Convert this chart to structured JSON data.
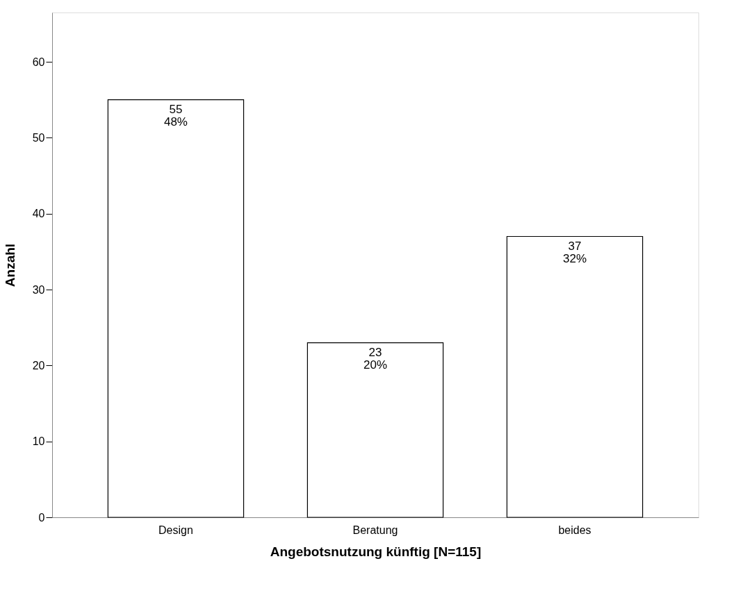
{
  "chart_data": {
    "type": "bar",
    "xlabel": "Angebotsnutzung künftig [N=115]",
    "ylabel": "Anzahl",
    "categories": [
      "Design",
      "Beratung",
      "beides"
    ],
    "values": [
      55,
      23,
      37
    ],
    "value_labels": [
      "55\n48%",
      "23\n20%",
      "37\n32%"
    ],
    "color": "#ffffff",
    "ylim": [
      0,
      66.5
    ],
    "yticks": [
      0,
      10,
      20,
      30,
      40,
      50,
      60
    ],
    "grid": false
  }
}
